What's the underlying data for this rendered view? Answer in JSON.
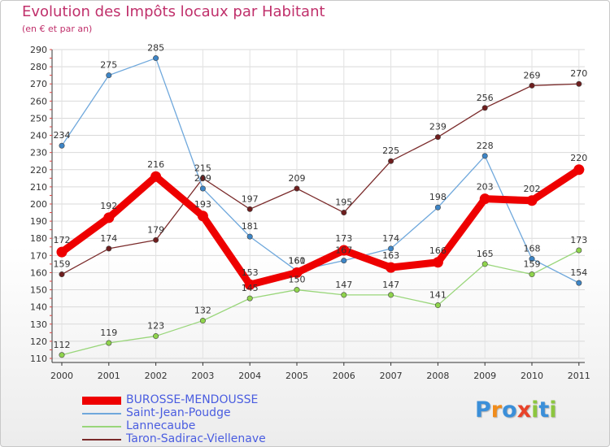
{
  "header": {
    "title": "Evolution des Impôts locaux par Habitant",
    "subtitle": "(en € et par an)"
  },
  "chart_data": {
    "type": "line",
    "title": "Evolution des Impôts locaux par Habitant",
    "subtitle": "(en € et par an)",
    "xlabel": "",
    "ylabel": "",
    "x": [
      "2000",
      "2001",
      "2002",
      "2003",
      "2004",
      "2005",
      "2006",
      "2007",
      "2008",
      "2009",
      "2010",
      "2011"
    ],
    "yticks": [
      110,
      120,
      130,
      140,
      150,
      160,
      170,
      180,
      190,
      200,
      210,
      220,
      230,
      240,
      250,
      260,
      270,
      280,
      290
    ],
    "ylim": [
      110,
      290
    ],
    "grid": true,
    "legend_position": "bottom-left",
    "series": [
      {
        "name": "Lannecaube",
        "color": "#99d67a",
        "dot_color": "#8fd44c",
        "values": [
          112,
          119,
          123,
          132,
          145,
          150,
          147,
          147,
          141,
          165,
          159,
          173
        ],
        "labels": [
          "112",
          "119",
          "123",
          "132",
          "145",
          "150",
          "147",
          "147",
          "141",
          "165",
          "159",
          "173"
        ]
      },
      {
        "name": "Taron-Sadirac-Viellenave",
        "color": "#7a2a2a",
        "dot_color": "#6e1e1e",
        "values": [
          159,
          174,
          179,
          215,
          197,
          209,
          195,
          225,
          239,
          256,
          269,
          270
        ],
        "labels": [
          "159",
          "174",
          "179",
          "215",
          "197",
          "209",
          "195",
          "225",
          "239",
          "256",
          "269",
          "270"
        ]
      },
      {
        "name": "Saint-Jean-Poudge",
        "color": "#6fa8dc",
        "dot_color": "#3d85c6",
        "values": [
          234,
          275,
          285,
          209,
          181,
          161,
          167,
          174,
          198,
          228,
          168,
          154
        ],
        "labels": [
          "234",
          "275",
          "285",
          "209",
          "181",
          "161",
          "167",
          "174",
          "198",
          "228",
          "168",
          "154"
        ]
      },
      {
        "name": "BUROSSE-MENDOUSSE",
        "color": "#ee0000",
        "dot_color": "#ee0000",
        "values": [
          172,
          192,
          216,
          193,
          153,
          160,
          173,
          163,
          166,
          203,
          202,
          220
        ],
        "labels": [
          "172",
          "192",
          "216",
          "193",
          "153",
          "160",
          "173",
          "163",
          "166",
          "203",
          "202",
          "220"
        ]
      }
    ]
  },
  "legend": {
    "items": [
      {
        "name": "BUROSSE-MENDOUSSE",
        "color": "#ee0000",
        "text_color": "#4a5de0"
      },
      {
        "name": "Saint-Jean-Poudge",
        "color": "#6fa8dc",
        "text_color": "#4a5de0"
      },
      {
        "name": "Lannecaube",
        "color": "#99d67a",
        "text_color": "#4a5de0"
      },
      {
        "name": "Taron-Sadirac-Viellenave",
        "color": "#7a2a2a",
        "text_color": "#4a5de0"
      }
    ]
  },
  "logo": {
    "letters": [
      "P",
      "r",
      "o",
      "x",
      "i",
      "t",
      "i"
    ],
    "colors": [
      "#3b8fd9",
      "#f08c1c",
      "#3b8fd9",
      "#e8432a",
      "#8cc63f",
      "#3b8fd9",
      "#8cc63f"
    ]
  }
}
